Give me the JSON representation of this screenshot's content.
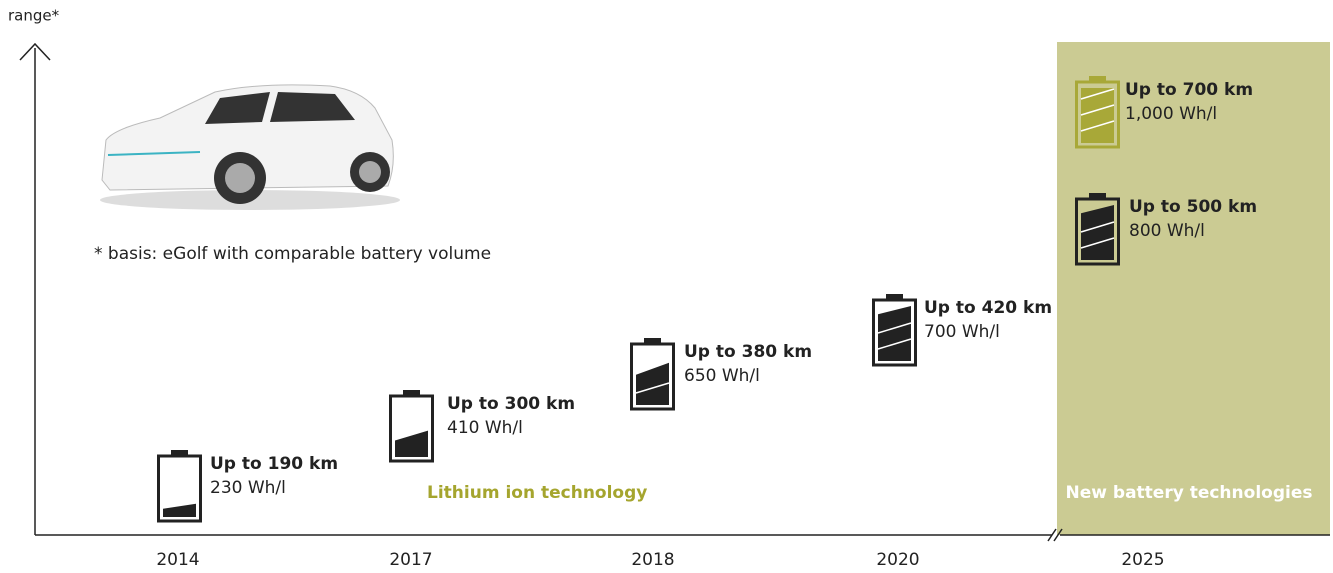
{
  "axis_label": "range*",
  "note": "* basis: eGolf with comparable battery volume",
  "years": [
    "2014",
    "2017",
    "2018",
    "2020",
    "2025"
  ],
  "batteries": [
    {
      "range": "Up to 190 km",
      "density": "230 Wh/l"
    },
    {
      "range": "Up to 300 km",
      "density": "410 Wh/l"
    },
    {
      "range": "Up to 380 km",
      "density": "650 Wh/l"
    },
    {
      "range": "Up to 420 km",
      "density": "700 Wh/l"
    },
    {
      "range": "Up to 500 km",
      "density": "800 Wh/l"
    },
    {
      "range": "Up to 700 km",
      "density": "1,000 Wh/l"
    }
  ],
  "regions": [
    "Lithium ion technology",
    "New battery technologies"
  ]
}
